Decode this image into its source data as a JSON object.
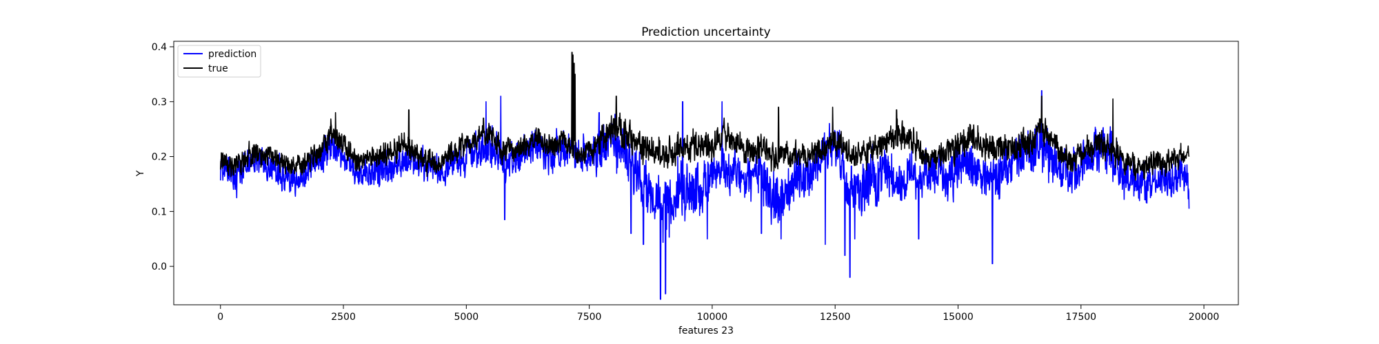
{
  "chart_data": {
    "type": "line",
    "title": "Prediction uncertainty",
    "xlabel": "features 23",
    "ylabel": "Y",
    "xlim": [
      -950,
      20700
    ],
    "ylim": [
      -0.07,
      0.41
    ],
    "x_ticks": [
      0,
      2500,
      5000,
      7500,
      10000,
      12500,
      15000,
      17500,
      20000
    ],
    "x_tick_labels": [
      "0",
      "2500",
      "5000",
      "7500",
      "10000",
      "12500",
      "15000",
      "17500",
      "20000"
    ],
    "y_ticks": [
      0.0,
      0.1,
      0.2,
      0.3,
      0.4
    ],
    "y_tick_labels": [
      "0.0",
      "0.1",
      "0.2",
      "0.3",
      "0.4"
    ],
    "grid": false,
    "legend_position": "upper-left",
    "series": [
      {
        "name": "prediction",
        "color": "#0000ff",
        "x": [
          0,
          250,
          500,
          750,
          1000,
          1250,
          1500,
          1750,
          2000,
          2250,
          2500,
          2750,
          3000,
          3250,
          3500,
          3750,
          4000,
          4250,
          4500,
          4750,
          5000,
          5250,
          5500,
          5750,
          6000,
          6250,
          6500,
          6750,
          7000,
          7250,
          7500,
          7750,
          8000,
          8250,
          8500,
          8750,
          9000,
          9250,
          9500,
          9750,
          10000,
          10250,
          10500,
          10750,
          11000,
          11250,
          11500,
          11750,
          12000,
          12250,
          12500,
          12750,
          13000,
          13250,
          13500,
          13750,
          14000,
          14250,
          14500,
          14750,
          15000,
          15250,
          15500,
          15750,
          16000,
          16250,
          16500,
          16750,
          17000,
          17250,
          17500,
          17750,
          18000,
          18250,
          18500,
          18750,
          19000,
          19250,
          19500,
          19700
        ],
        "y": [
          0.18,
          0.17,
          0.18,
          0.19,
          0.18,
          0.17,
          0.16,
          0.17,
          0.2,
          0.22,
          0.2,
          0.17,
          0.17,
          0.18,
          0.18,
          0.2,
          0.19,
          0.18,
          0.17,
          0.19,
          0.2,
          0.21,
          0.22,
          0.19,
          0.2,
          0.21,
          0.22,
          0.2,
          0.22,
          0.2,
          0.2,
          0.22,
          0.23,
          0.2,
          0.16,
          0.13,
          0.11,
          0.13,
          0.15,
          0.14,
          0.17,
          0.18,
          0.17,
          0.16,
          0.18,
          0.12,
          0.14,
          0.17,
          0.16,
          0.2,
          0.22,
          0.15,
          0.14,
          0.16,
          0.17,
          0.15,
          0.17,
          0.16,
          0.17,
          0.16,
          0.18,
          0.18,
          0.16,
          0.15,
          0.18,
          0.2,
          0.21,
          0.22,
          0.18,
          0.16,
          0.19,
          0.2,
          0.22,
          0.18,
          0.16,
          0.15,
          0.16,
          0.16,
          0.17,
          0.16
        ],
        "noise": [
          0.018,
          0.02,
          0.022,
          0.02,
          0.018,
          0.02,
          0.02,
          0.018,
          0.02,
          0.022,
          0.02,
          0.02,
          0.02,
          0.022,
          0.02,
          0.02,
          0.02,
          0.02,
          0.02,
          0.02,
          0.022,
          0.025,
          0.03,
          0.025,
          0.022,
          0.025,
          0.025,
          0.022,
          0.025,
          0.022,
          0.025,
          0.03,
          0.035,
          0.035,
          0.035,
          0.035,
          0.04,
          0.035,
          0.035,
          0.035,
          0.035,
          0.03,
          0.03,
          0.03,
          0.035,
          0.035,
          0.035,
          0.03,
          0.03,
          0.03,
          0.03,
          0.04,
          0.04,
          0.035,
          0.03,
          0.03,
          0.03,
          0.03,
          0.03,
          0.03,
          0.035,
          0.03,
          0.03,
          0.035,
          0.03,
          0.03,
          0.035,
          0.035,
          0.03,
          0.03,
          0.03,
          0.03,
          0.035,
          0.03,
          0.025,
          0.025,
          0.025,
          0.025,
          0.025,
          0.025
        ],
        "spikes": [
          [
            330,
            0.125
          ],
          [
            5400,
            0.3
          ],
          [
            5700,
            0.31
          ],
          [
            5780,
            0.085
          ],
          [
            7700,
            0.28
          ],
          [
            8350,
            0.06
          ],
          [
            8600,
            0.04
          ],
          [
            8950,
            -0.06
          ],
          [
            9050,
            -0.05
          ],
          [
            9300,
            0.2
          ],
          [
            9400,
            0.3
          ],
          [
            9900,
            0.05
          ],
          [
            10200,
            0.3
          ],
          [
            11000,
            0.06
          ],
          [
            11400,
            0.05
          ],
          [
            12300,
            0.04
          ],
          [
            12700,
            0.02
          ],
          [
            12800,
            -0.02
          ],
          [
            12900,
            0.05
          ],
          [
            14200,
            0.05
          ],
          [
            15700,
            0.005
          ],
          [
            16700,
            0.32
          ],
          [
            19700,
            0.105
          ]
        ]
      },
      {
        "name": "true",
        "color": "#000000",
        "x": [
          0,
          250,
          500,
          750,
          1000,
          1250,
          1500,
          1750,
          2000,
          2250,
          2500,
          2750,
          3000,
          3250,
          3500,
          3750,
          4000,
          4250,
          4500,
          4750,
          5000,
          5250,
          5500,
          5750,
          6000,
          6250,
          6500,
          6750,
          7000,
          7250,
          7500,
          7750,
          8000,
          8250,
          8500,
          8750,
          9000,
          9250,
          9500,
          9750,
          10000,
          10250,
          10500,
          10750,
          11000,
          11250,
          11500,
          11750,
          12000,
          12250,
          12500,
          12750,
          13000,
          13250,
          13500,
          13750,
          14000,
          14250,
          14500,
          14750,
          15000,
          15250,
          15500,
          15750,
          16000,
          16250,
          16500,
          16750,
          17000,
          17250,
          17500,
          17750,
          18000,
          18250,
          18500,
          18750,
          19000,
          19250,
          19500,
          19700
        ],
        "y": [
          0.185,
          0.18,
          0.2,
          0.21,
          0.2,
          0.19,
          0.18,
          0.19,
          0.21,
          0.24,
          0.22,
          0.19,
          0.19,
          0.2,
          0.21,
          0.22,
          0.2,
          0.19,
          0.19,
          0.21,
          0.22,
          0.23,
          0.24,
          0.21,
          0.21,
          0.22,
          0.23,
          0.22,
          0.23,
          0.2,
          0.21,
          0.23,
          0.25,
          0.24,
          0.22,
          0.21,
          0.2,
          0.21,
          0.22,
          0.22,
          0.22,
          0.24,
          0.22,
          0.21,
          0.22,
          0.2,
          0.2,
          0.2,
          0.2,
          0.21,
          0.23,
          0.21,
          0.2,
          0.21,
          0.22,
          0.24,
          0.23,
          0.21,
          0.2,
          0.21,
          0.22,
          0.23,
          0.22,
          0.21,
          0.22,
          0.22,
          0.23,
          0.25,
          0.22,
          0.19,
          0.2,
          0.22,
          0.23,
          0.2,
          0.18,
          0.18,
          0.19,
          0.19,
          0.2,
          0.2
        ],
        "noise": [
          0.015,
          0.016,
          0.018,
          0.016,
          0.015,
          0.015,
          0.015,
          0.015,
          0.016,
          0.018,
          0.016,
          0.015,
          0.015,
          0.016,
          0.016,
          0.016,
          0.015,
          0.015,
          0.015,
          0.016,
          0.016,
          0.018,
          0.02,
          0.016,
          0.015,
          0.016,
          0.016,
          0.016,
          0.016,
          0.015,
          0.016,
          0.018,
          0.02,
          0.02,
          0.02,
          0.02,
          0.02,
          0.02,
          0.02,
          0.02,
          0.02,
          0.02,
          0.018,
          0.018,
          0.02,
          0.018,
          0.018,
          0.018,
          0.018,
          0.018,
          0.018,
          0.018,
          0.018,
          0.018,
          0.018,
          0.02,
          0.02,
          0.018,
          0.018,
          0.018,
          0.02,
          0.02,
          0.02,
          0.018,
          0.02,
          0.02,
          0.02,
          0.02,
          0.018,
          0.018,
          0.018,
          0.018,
          0.02,
          0.018,
          0.016,
          0.016,
          0.016,
          0.016,
          0.016,
          0.016
        ],
        "spikes": [
          [
            7150,
            0.39
          ],
          [
            7170,
            0.385
          ],
          [
            7190,
            0.37
          ],
          [
            7210,
            0.35
          ],
          [
            2340,
            0.28
          ],
          [
            3830,
            0.285
          ],
          [
            5350,
            0.27
          ],
          [
            8050,
            0.31
          ],
          [
            11350,
            0.29
          ],
          [
            12450,
            0.29
          ],
          [
            13750,
            0.285
          ],
          [
            16700,
            0.31
          ],
          [
            18150,
            0.305
          ]
        ]
      }
    ]
  }
}
